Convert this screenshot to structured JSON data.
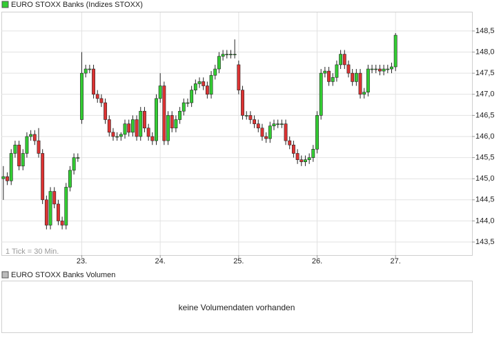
{
  "chart_data": {
    "type": "candlestick",
    "title": "EURO STOXX Banks (Indizes STOXX)",
    "note": "1 Tick = 30 Min.",
    "up_color": "#33cc33",
    "down_color": "#dd3333",
    "grid": true,
    "xlim": [
      -0.5,
      119.5
    ],
    "xticks": [
      {
        "value": 20,
        "label": "23."
      },
      {
        "value": 40,
        "label": "24."
      },
      {
        "value": 60,
        "label": "25."
      },
      {
        "value": 80,
        "label": "26."
      },
      {
        "value": 100,
        "label": "27."
      }
    ],
    "ylim": [
      143.19,
      148.94
    ],
    "yticks": [
      {
        "value": 143.5,
        "label": "143,5"
      },
      {
        "value": 144,
        "label": "144,0"
      },
      {
        "value": 144.5,
        "label": "144,5"
      },
      {
        "value": 145,
        "label": "145,0"
      },
      {
        "value": 145.5,
        "label": "145,5"
      },
      {
        "value": 146,
        "label": "146,0"
      },
      {
        "value": 146.5,
        "label": "146,5"
      },
      {
        "value": 147,
        "label": "147,0"
      },
      {
        "value": 147.5,
        "label": "147,5"
      },
      {
        "value": 148,
        "label": "148,0"
      },
      {
        "value": 148.5,
        "label": "148,5"
      }
    ],
    "open": [
      145.0,
      145.05,
      144.95,
      145.6,
      145.8,
      145.3,
      145.6,
      146.0,
      146.05,
      145.9,
      145.6,
      144.5,
      143.9,
      144.7,
      144.4,
      144.0,
      143.9,
      144.8,
      145.2,
      145.5,
      146.4,
      147.5,
      147.6,
      147.6,
      147.0,
      146.9,
      146.8,
      146.4,
      146.1,
      146.0,
      146.0,
      146.05,
      146.3,
      146.1,
      146.4,
      146.0,
      146.6,
      146.2,
      146.0,
      145.9,
      146.9,
      147.2,
      145.9,
      146.5,
      146.2,
      146.4,
      146.6,
      146.8,
      146.8,
      147.1,
      147.25,
      147.3,
      147.2,
      147.0,
      147.45,
      147.6,
      147.9,
      147.95,
      147.95,
      147.95,
      147.7,
      147.1,
      146.5,
      146.5,
      146.4,
      146.3,
      146.2,
      146.0,
      145.95,
      146.25,
      146.3,
      146.3,
      146.3,
      145.9,
      145.8,
      145.6,
      145.45,
      145.4,
      145.45,
      145.5,
      145.7,
      146.5,
      147.5,
      147.55,
      147.3,
      147.4,
      147.7,
      147.95,
      147.7,
      147.5,
      147.3,
      147.5,
      147.0,
      147.05,
      147.6,
      147.6,
      147.6,
      147.55,
      147.6,
      147.6,
      147.65
    ],
    "high": [
      145.3,
      145.15,
      145.7,
      145.9,
      145.9,
      145.7,
      146.1,
      146.15,
      146.15,
      146.2,
      145.7,
      144.6,
      144.8,
      144.8,
      144.5,
      144.1,
      144.9,
      145.3,
      145.6,
      145.6,
      148.0,
      147.7,
      147.7,
      147.7,
      147.1,
      147.0,
      146.9,
      146.5,
      146.2,
      146.1,
      146.1,
      146.4,
      146.4,
      146.5,
      146.5,
      146.7,
      146.7,
      146.3,
      146.1,
      147.0,
      147.5,
      147.3,
      146.6,
      146.6,
      146.5,
      146.7,
      146.9,
      146.9,
      147.2,
      147.35,
      147.4,
      147.4,
      147.3,
      147.55,
      147.7,
      148.0,
      148.05,
      148.05,
      148.05,
      148.3,
      147.8,
      147.2,
      146.6,
      146.6,
      146.5,
      146.4,
      146.3,
      146.1,
      146.35,
      146.4,
      146.4,
      146.4,
      146.4,
      146.0,
      145.9,
      145.7,
      145.55,
      145.55,
      145.6,
      145.8,
      146.6,
      147.6,
      147.65,
      147.65,
      147.5,
      147.8,
      148.05,
      148.05,
      147.8,
      147.6,
      147.6,
      147.6,
      147.15,
      147.7,
      147.7,
      147.7,
      147.7,
      147.7,
      147.7,
      147.75,
      148.45
    ],
    "low": [
      144.5,
      144.85,
      144.85,
      145.5,
      145.2,
      145.2,
      145.5,
      145.9,
      145.8,
      145.5,
      144.4,
      143.8,
      143.8,
      144.3,
      143.9,
      143.8,
      143.8,
      144.7,
      145.1,
      145.4,
      146.3,
      147.4,
      147.5,
      146.9,
      146.8,
      146.7,
      146.3,
      146.0,
      145.9,
      145.9,
      145.9,
      145.95,
      146.0,
      146.0,
      145.9,
      145.9,
      146.1,
      145.9,
      145.8,
      145.8,
      146.8,
      145.8,
      145.8,
      146.1,
      146.1,
      146.3,
      146.5,
      146.7,
      146.7,
      147.0,
      147.15,
      147.1,
      146.9,
      146.9,
      147.35,
      147.5,
      147.8,
      147.85,
      147.85,
      147.85,
      147.0,
      146.4,
      146.4,
      146.3,
      146.2,
      146.1,
      145.9,
      145.85,
      145.85,
      146.15,
      146.2,
      146.2,
      145.8,
      145.7,
      145.5,
      145.35,
      145.3,
      145.3,
      145.35,
      145.4,
      145.6,
      146.4,
      147.4,
      147.2,
      147.2,
      147.3,
      147.6,
      147.6,
      147.4,
      147.2,
      147.2,
      146.9,
      146.9,
      146.95,
      147.5,
      147.5,
      147.45,
      147.45,
      147.5,
      147.5,
      147.55
    ],
    "close": [
      145.05,
      144.95,
      145.6,
      145.8,
      145.3,
      145.6,
      146.0,
      146.05,
      145.9,
      145.6,
      144.5,
      143.9,
      144.7,
      144.4,
      144.0,
      143.9,
      144.8,
      145.2,
      145.5,
      145.5,
      147.5,
      147.6,
      147.6,
      147.0,
      146.9,
      146.8,
      146.4,
      146.1,
      146.0,
      146.0,
      146.05,
      146.3,
      146.1,
      146.4,
      146.0,
      146.6,
      146.2,
      146.0,
      145.9,
      146.9,
      147.2,
      145.9,
      146.5,
      146.2,
      146.4,
      146.6,
      146.8,
      146.8,
      147.1,
      147.25,
      147.3,
      147.2,
      147.0,
      147.45,
      147.6,
      147.9,
      147.95,
      147.95,
      147.95,
      147.95,
      147.1,
      146.5,
      146.5,
      146.4,
      146.3,
      146.2,
      146.0,
      145.95,
      146.25,
      146.3,
      146.3,
      146.3,
      145.9,
      145.8,
      145.6,
      145.45,
      145.4,
      145.45,
      145.5,
      145.7,
      146.5,
      147.5,
      147.55,
      147.3,
      147.4,
      147.7,
      147.95,
      147.7,
      147.5,
      147.3,
      147.5,
      147.0,
      147.05,
      147.6,
      147.6,
      147.6,
      147.55,
      147.6,
      147.6,
      147.65,
      148.4
    ]
  },
  "volume_panel": {
    "title": "EURO STOXX Banks Volumen",
    "message": "keine Volumendaten vorhanden"
  }
}
